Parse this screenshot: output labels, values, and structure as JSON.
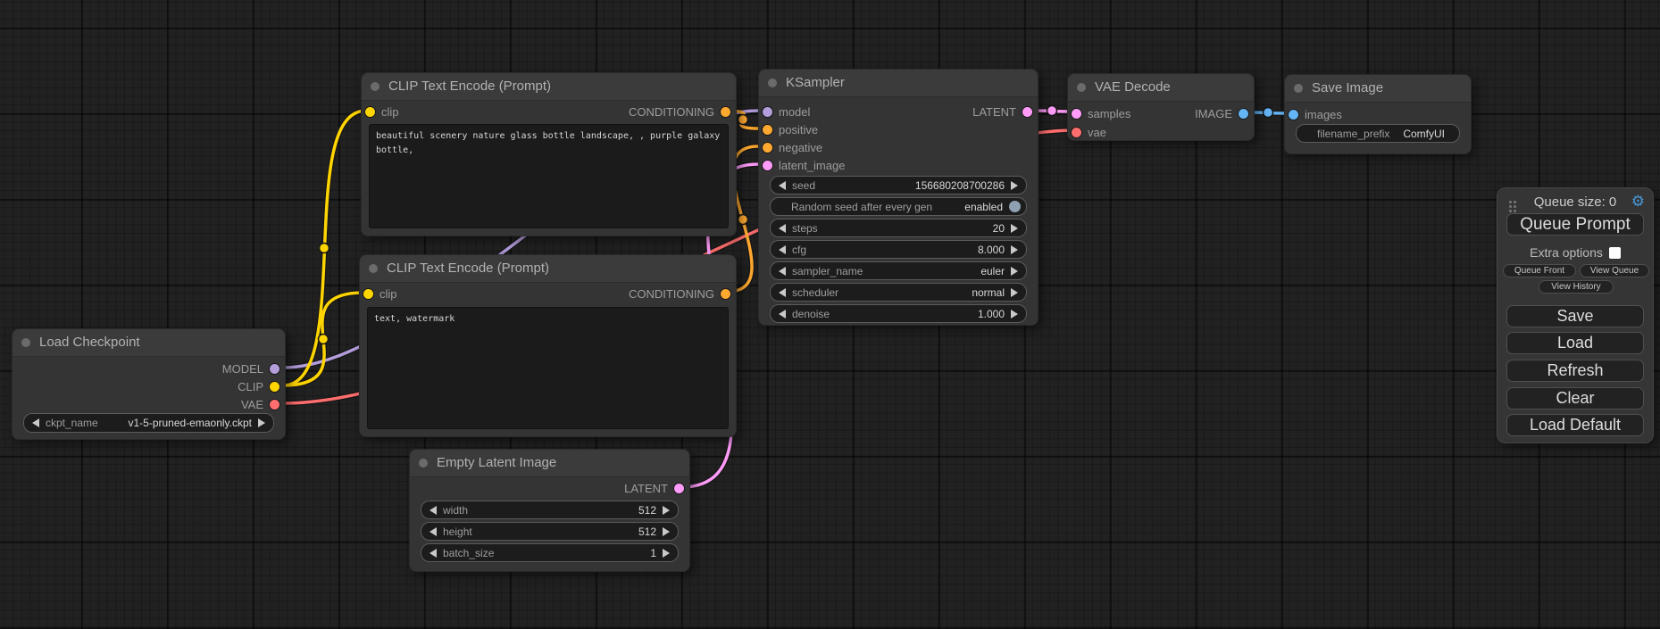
{
  "colors": {
    "model": "#B39DDB",
    "clip": "#FFD500",
    "vae": "#FF6E6E",
    "conditioning": "#FFA931",
    "latent": "#FF9CF9",
    "image": "#64B5F6",
    "toggle": "#8FA0B3",
    "gear": "#4697D2"
  },
  "nodes": {
    "load_checkpoint": {
      "title": "Load Checkpoint",
      "outputs": {
        "model": "MODEL",
        "clip": "CLIP",
        "vae": "VAE"
      },
      "widget": {
        "label": "ckpt_name",
        "value": "v1-5-pruned-emaonly.ckpt"
      }
    },
    "clip_positive": {
      "title": "CLIP Text Encode (Prompt)",
      "input": "clip",
      "output": "CONDITIONING",
      "text": "beautiful scenery nature glass bottle landscape, , purple galaxy bottle,"
    },
    "clip_negative": {
      "title": "CLIP Text Encode (Prompt)",
      "input": "clip",
      "output": "CONDITIONING",
      "text": "text, watermark"
    },
    "empty_latent": {
      "title": "Empty Latent Image",
      "output": "LATENT",
      "widgets": [
        {
          "label": "width",
          "value": "512"
        },
        {
          "label": "height",
          "value": "512"
        },
        {
          "label": "batch_size",
          "value": "1"
        }
      ]
    },
    "ksampler": {
      "title": "KSampler",
      "inputs": {
        "model": "model",
        "positive": "positive",
        "negative": "negative",
        "latent_image": "latent_image"
      },
      "output": "LATENT",
      "widgets": [
        {
          "label": "seed",
          "value": "156680208700286"
        },
        {
          "label": "Random seed after every gen",
          "value": "enabled"
        },
        {
          "label": "steps",
          "value": "20"
        },
        {
          "label": "cfg",
          "value": "8.000"
        },
        {
          "label": "sampler_name",
          "value": "euler"
        },
        {
          "label": "scheduler",
          "value": "normal"
        },
        {
          "label": "denoise",
          "value": "1.000"
        }
      ]
    },
    "vae_decode": {
      "title": "VAE Decode",
      "inputs": {
        "samples": "samples",
        "vae": "vae"
      },
      "output": "IMAGE"
    },
    "save_image": {
      "title": "Save Image",
      "input": "images",
      "widget": {
        "label": "filename_prefix",
        "value": "ComfyUI"
      }
    }
  },
  "queue_panel": {
    "title": "Queue size: 0",
    "queue_prompt": "Queue Prompt",
    "extra_options_label": "Extra options",
    "queue_front": "Queue Front",
    "view_queue": "View Queue",
    "view_history": "View History",
    "save": "Save",
    "load": "Load",
    "refresh": "Refresh",
    "clear": "Clear",
    "load_default": "Load Default"
  }
}
